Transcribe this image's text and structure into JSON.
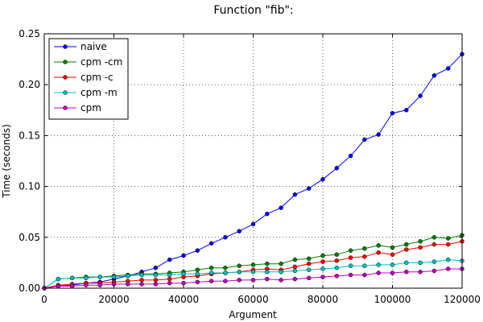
{
  "chart_data": {
    "type": "line",
    "title": "Function \"fib\":",
    "xlabel": "Argument",
    "ylabel": "Time (seconds)",
    "xlim": [
      0,
      120000
    ],
    "ylim": [
      0,
      0.25
    ],
    "xticks": [
      0,
      20000,
      40000,
      60000,
      80000,
      100000,
      120000
    ],
    "xtick_labels": [
      "0",
      "20000",
      "40000",
      "60000",
      "80000",
      "100000",
      "120000"
    ],
    "yticks": [
      0,
      0.05,
      0.1,
      0.15,
      0.2,
      0.25
    ],
    "ytick_labels": [
      "0.00",
      "0.05",
      "0.10",
      "0.15",
      "0.20",
      "0.25"
    ],
    "grid": true,
    "legend_position": "top-left",
    "x": [
      0,
      4000,
      8000,
      12000,
      16000,
      20000,
      24000,
      28000,
      32000,
      36000,
      40000,
      44000,
      48000,
      52000,
      56000,
      60000,
      64000,
      68000,
      72000,
      76000,
      80000,
      84000,
      88000,
      92000,
      96000,
      100000,
      104000,
      108000,
      112000,
      116000,
      120000
    ],
    "series": [
      {
        "name": "naive",
        "color": "#0000ff",
        "values": [
          0.0,
          0.002,
          0.003,
          0.005,
          0.006,
          0.009,
          0.012,
          0.016,
          0.02,
          0.028,
          0.032,
          0.037,
          0.044,
          0.05,
          0.056,
          0.063,
          0.073,
          0.079,
          0.092,
          0.098,
          0.107,
          0.118,
          0.13,
          0.146,
          0.151,
          0.172,
          0.175,
          0.189,
          0.209,
          0.216,
          0.23
        ]
      },
      {
        "name": "cpm -cm",
        "color": "#007f00",
        "values": [
          0.0,
          0.009,
          0.01,
          0.011,
          0.011,
          0.012,
          0.013,
          0.014,
          0.014,
          0.015,
          0.016,
          0.018,
          0.02,
          0.02,
          0.022,
          0.023,
          0.024,
          0.024,
          0.028,
          0.029,
          0.032,
          0.033,
          0.037,
          0.039,
          0.042,
          0.04,
          0.043,
          0.046,
          0.05,
          0.049,
          0.052
        ]
      },
      {
        "name": "cpm -c",
        "color": "#ff0000",
        "values": [
          0.0,
          0.003,
          0.004,
          0.005,
          0.005,
          0.006,
          0.007,
          0.008,
          0.008,
          0.009,
          0.011,
          0.012,
          0.014,
          0.015,
          0.016,
          0.018,
          0.019,
          0.018,
          0.021,
          0.024,
          0.026,
          0.027,
          0.03,
          0.031,
          0.035,
          0.033,
          0.038,
          0.04,
          0.043,
          0.043,
          0.046
        ]
      },
      {
        "name": "cpm -m",
        "color": "#00bfbf",
        "values": [
          0.0,
          0.009,
          0.01,
          0.01,
          0.011,
          0.011,
          0.012,
          0.013,
          0.013,
          0.013,
          0.014,
          0.014,
          0.015,
          0.015,
          0.016,
          0.016,
          0.016,
          0.016,
          0.017,
          0.018,
          0.019,
          0.02,
          0.022,
          0.022,
          0.023,
          0.023,
          0.025,
          0.025,
          0.026,
          0.028,
          0.027
        ]
      },
      {
        "name": "cpm",
        "color": "#bf00bf",
        "values": [
          0.0,
          0.002,
          0.002,
          0.003,
          0.003,
          0.004,
          0.004,
          0.004,
          0.004,
          0.005,
          0.005,
          0.006,
          0.007,
          0.007,
          0.008,
          0.008,
          0.009,
          0.008,
          0.009,
          0.01,
          0.011,
          0.012,
          0.013,
          0.013,
          0.015,
          0.015,
          0.016,
          0.016,
          0.017,
          0.019,
          0.019
        ]
      }
    ]
  }
}
